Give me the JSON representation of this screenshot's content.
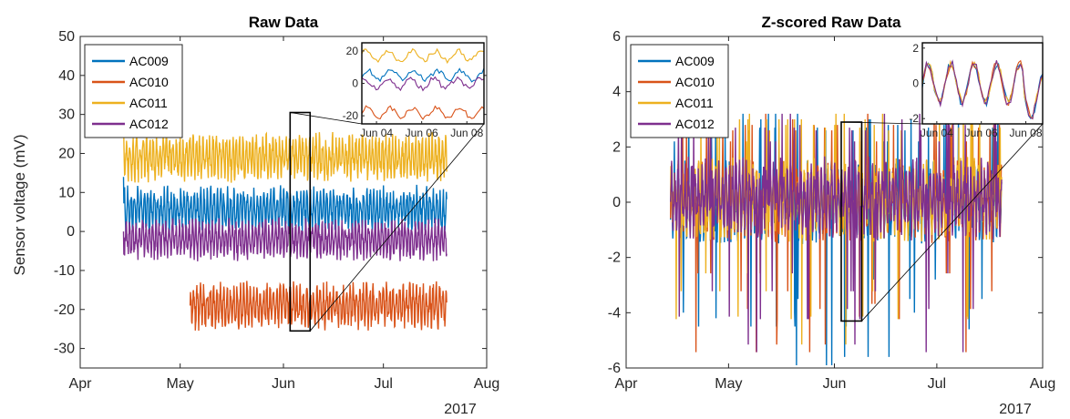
{
  "chart_data": [
    {
      "type": "line",
      "title": "Raw Data",
      "ylabel": "Sensor voltage (mV)",
      "xlabel": "",
      "year_label": "2017",
      "x_ticks": [
        "Apr",
        "May",
        "Jun",
        "Jul",
        "Aug"
      ],
      "ylim": [
        -35,
        50
      ],
      "y_ticks": [
        -30,
        -20,
        -10,
        0,
        10,
        20,
        30,
        40,
        50
      ],
      "legend_position": "top-left",
      "zoom_box": {
        "x_from": "Jun 03",
        "x_to": "Jun 09",
        "y_from": -25.5,
        "y_to": 30.5
      },
      "series": [
        {
          "name": "AC009",
          "color": "#0072BD",
          "x_from": "Apr 14",
          "x_to": "Jul 20",
          "mean": 5.5,
          "spread": 4.5,
          "values": [
            14,
            6,
            5,
            7,
            9,
            6,
            4,
            10,
            6,
            7,
            5,
            8,
            4,
            6,
            9,
            5
          ]
        },
        {
          "name": "AC010",
          "color": "#D95319",
          "x_from": "May 04",
          "x_to": "Jul 20",
          "mean": -19,
          "spread": 4.5,
          "values": [
            -19,
            -20,
            -17,
            -22,
            -18,
            -21,
            -16,
            -19,
            -31,
            -20,
            -18,
            -19,
            -21,
            -17
          ]
        },
        {
          "name": "AC011",
          "color": "#EDB120",
          "x_from": "Apr 14",
          "x_to": "Jul 20",
          "mean": 19,
          "spread": 4.5,
          "values": [
            30,
            20,
            21,
            18,
            22,
            17,
            20,
            19,
            16,
            20,
            21,
            18,
            19,
            17,
            20,
            18
          ]
        },
        {
          "name": "AC012",
          "color": "#7E2F8E",
          "x_from": "Apr 14",
          "x_to": "Jul 20",
          "mean": -2,
          "spread": 4,
          "values": [
            0,
            -2,
            -1,
            -4,
            2,
            -3,
            -1,
            -2,
            -4,
            -1,
            -3,
            -2,
            0,
            -3,
            -2,
            -1
          ]
        }
      ],
      "inset": {
        "x_ticks": [
          "Jun 04",
          "Jun 06",
          "Jun 08"
        ],
        "y_ticks": [
          -20,
          0,
          20
        ],
        "ylim": [
          -25,
          25
        ]
      }
    },
    {
      "type": "line",
      "title": "Z-scored Raw Data",
      "ylabel": "",
      "xlabel": "",
      "year_label": "2017",
      "x_ticks": [
        "Apr",
        "May",
        "Jun",
        "Jul",
        "Aug"
      ],
      "ylim": [
        -6,
        6
      ],
      "y_ticks": [
        -6,
        -4,
        -2,
        0,
        2,
        4,
        6
      ],
      "legend_position": "top-left",
      "zoom_box": {
        "x_from": "Jun 03",
        "x_to": "Jun 09",
        "y_from": -4.3,
        "y_to": 2.9
      },
      "series": [
        {
          "name": "AC009",
          "color": "#0072BD"
        },
        {
          "name": "AC010",
          "color": "#D95319"
        },
        {
          "name": "AC011",
          "color": "#EDB120"
        },
        {
          "name": "AC012",
          "color": "#7E2F8E"
        }
      ],
      "spikes_low": [
        -2.8,
        -4.2,
        -5.6,
        -5.9,
        -4.0,
        -4.6,
        -4.5,
        -3.5
      ],
      "spikes_high": [
        3.0,
        3.2,
        2.8,
        2.6,
        2.7,
        2.2
      ],
      "inset": {
        "x_ticks": [
          "Jun 04",
          "Jun 06",
          "Jun 08"
        ],
        "y_ticks": [
          -2,
          0,
          2
        ],
        "ylim": [
          -2.3,
          2.3
        ]
      }
    }
  ]
}
